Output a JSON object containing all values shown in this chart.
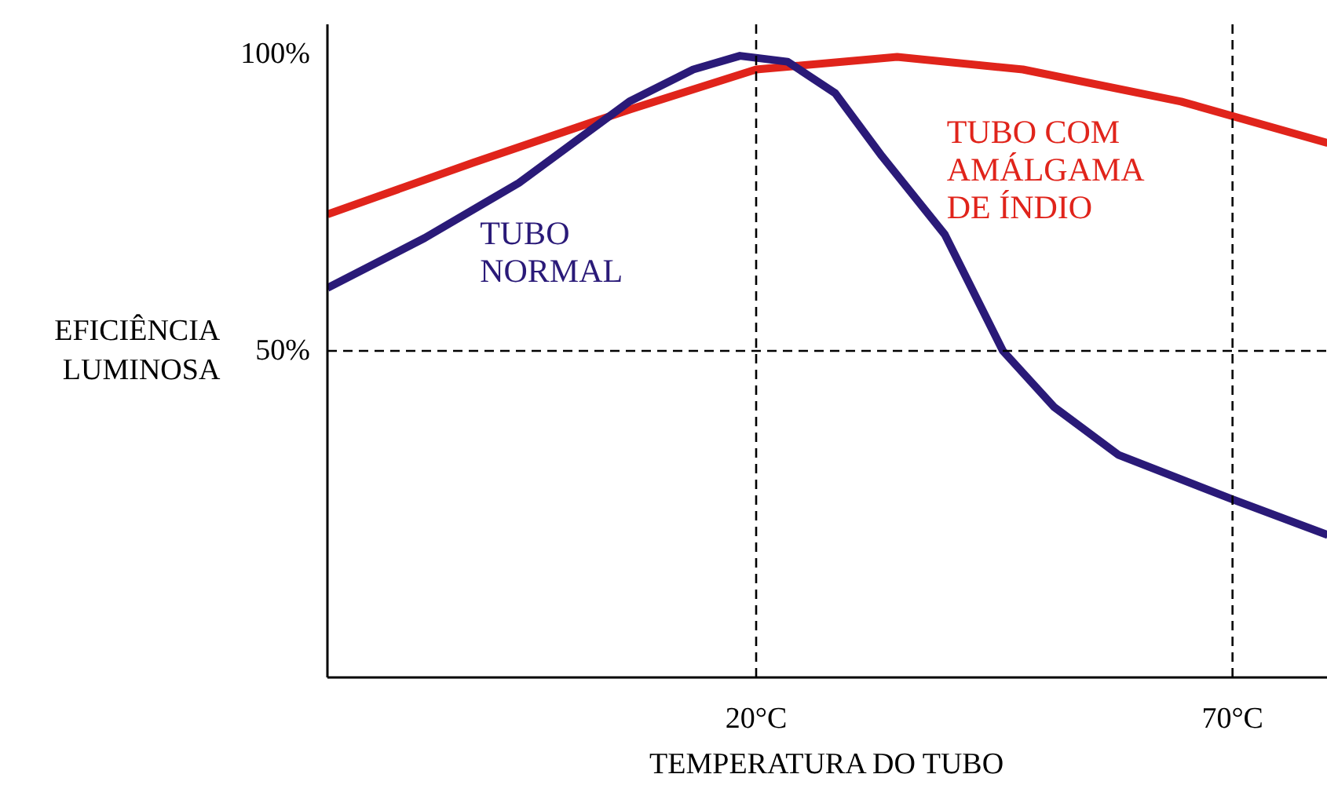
{
  "chart_data": {
    "type": "line",
    "xlabel": "TEMPERATURA DO TUBO",
    "ylabel": "EFICIÊNCIA\nLUMINOSA",
    "xlim": [
      -25,
      80
    ],
    "ylim": [
      -5,
      105
    ],
    "xticks": [
      {
        "value": 20,
        "label": "20°C"
      },
      {
        "value": 70,
        "label": "70°C"
      }
    ],
    "yticks": [
      {
        "value": 50,
        "label": "50%"
      },
      {
        "value": 100,
        "label": "100%"
      }
    ],
    "grid": false,
    "marker": "none",
    "line_style": "solid",
    "ref_lines": [
      {
        "axis": "x",
        "value": 20,
        "line_style": "dashed",
        "color": "#000000"
      },
      {
        "axis": "x",
        "value": 70,
        "line_style": "dashed",
        "color": "#000000"
      },
      {
        "axis": "y",
        "value": 50,
        "line_style": "dashed",
        "color": "#000000"
      }
    ],
    "series": [
      {
        "name": "TUBO COM\nAMÁLGAMA\nDE ÍNDIO",
        "color": "#e0241b",
        "x": [
          -25,
          -9.7,
          6.8,
          20,
          34.8,
          48,
          64.6,
          80
        ],
        "values": [
          73,
          81.7,
          90.7,
          97.4,
          99.5,
          97.4,
          92,
          85
        ]
      },
      {
        "name": "TUBO\nNORMAL",
        "color": "#2a1a78",
        "x": [
          -25,
          -14.8,
          -4.9,
          6.7,
          13.4,
          18.3,
          23.3,
          28.3,
          33.2,
          39.8,
          45.9,
          51.3,
          58,
          70,
          80
        ],
        "values": [
          60.6,
          69,
          78.3,
          92,
          97.4,
          99.7,
          98.7,
          93.4,
          82.8,
          69.6,
          50,
          40.5,
          32.5,
          25,
          19
        ]
      }
    ]
  }
}
